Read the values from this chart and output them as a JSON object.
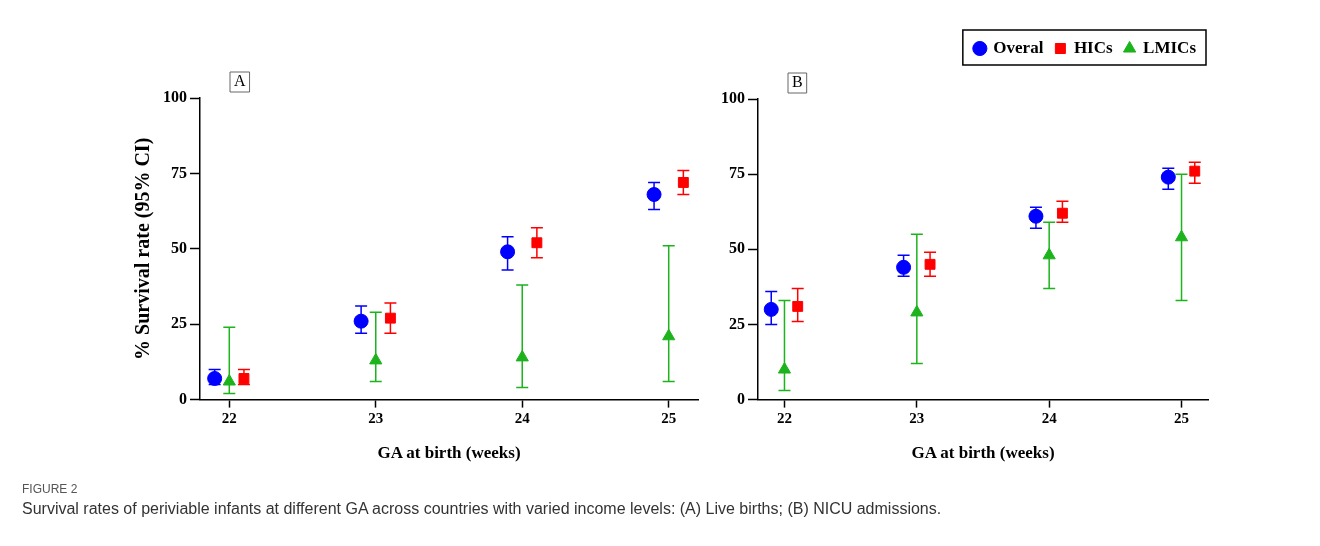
{
  "chart_data": [
    {
      "type": "scatter",
      "xlabel": "GA at birth (weeks)",
      "ylabel": "% Survival rate (95% CI)",
      "xlim": [
        21.8,
        25.2
      ],
      "xticks": [
        22,
        23,
        24,
        25
      ],
      "ylim": [
        0,
        100
      ],
      "yticks": [
        0,
        25,
        50,
        75,
        100
      ],
      "annotations": [
        "A",
        "FIGURE 2",
        "Survival rates of periviable infants at different GA across countries with varied income levels: (A) Live births; (B) NICU admissions."
      ],
      "series": [
        {
          "color": "#0000ff",
          "marker": "circle",
          "x": [
            21.9,
            22.9,
            23.9,
            24.9
          ],
          "values": [
            7,
            26,
            49,
            68
          ],
          "errors": [
            [
              5,
              10
            ],
            [
              22,
              31
            ],
            [
              43,
              54
            ],
            [
              63,
              72
            ]
          ]
        },
        {
          "color": "#ff0000",
          "marker": "square",
          "x": [
            22.1,
            23.1,
            24.1,
            25.1
          ],
          "values": [
            7,
            27,
            52,
            72
          ],
          "errors": [
            [
              5,
              10
            ],
            [
              22,
              32
            ],
            [
              47,
              57
            ],
            [
              68,
              76
            ]
          ]
        },
        {
          "color": "#1db31d",
          "marker": "triangle",
          "x": [
            22,
            23,
            24,
            25
          ],
          "values": [
            6,
            13,
            14,
            21
          ],
          "errors": [
            [
              2,
              24
            ],
            [
              6,
              29
            ],
            [
              4,
              38
            ],
            [
              6,
              51
            ]
          ]
        }
      ]
    },
    {
      "type": "scatter",
      "xlabel": "GA at birth (weeks)",
      "xlim": [
        21.8,
        25.2
      ],
      "xticks": [
        22,
        23,
        24,
        25
      ],
      "ylim": [
        0,
        100
      ],
      "yticks": [
        0,
        25,
        50,
        75,
        100
      ],
      "legend": "top right",
      "annotations": [
        "B"
      ],
      "series": [
        {
          "name": "Overal",
          "color": "#0000ff",
          "marker": "circle",
          "x": [
            21.9,
            22.9,
            23.9,
            24.9
          ],
          "values": [
            30,
            44,
            61,
            74
          ],
          "errors": [
            [
              25,
              36
            ],
            [
              41,
              48
            ],
            [
              57,
              64
            ],
            [
              70,
              77
            ]
          ]
        },
        {
          "name": "HICs",
          "color": "#ff0000",
          "marker": "square",
          "x": [
            22.1,
            23.1,
            24.1,
            25.1
          ],
          "values": [
            31,
            45,
            62,
            76
          ],
          "errors": [
            [
              26,
              37
            ],
            [
              41,
              49
            ],
            [
              59,
              66
            ],
            [
              72,
              79
            ]
          ]
        },
        {
          "name": "LMICs",
          "color": "#1db31d",
          "marker": "triangle",
          "x": [
            22,
            23,
            24,
            25
          ],
          "values": [
            10,
            29,
            48,
            54
          ],
          "errors": [
            [
              3,
              33
            ],
            [
              12,
              55
            ],
            [
              37,
              59
            ],
            [
              33,
              75
            ]
          ]
        }
      ]
    }
  ]
}
